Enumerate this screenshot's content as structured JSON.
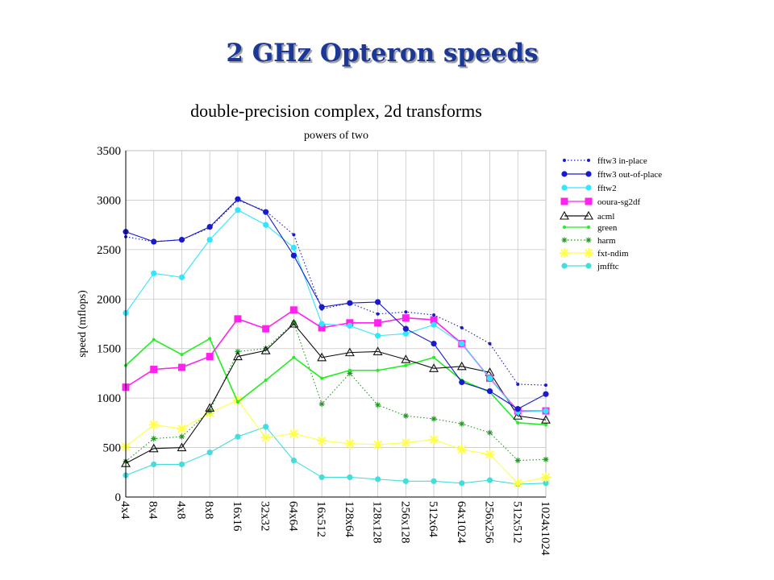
{
  "slide_title": "2 GHz Opteron speeds",
  "chart_data": {
    "type": "line",
    "title": "double-precision complex, 2d transforms",
    "subtitle": "powers of two",
    "xlabel": "",
    "ylabel": "speed (mflops)",
    "ylim": [
      0,
      3500
    ],
    "yticks": [
      0,
      500,
      1000,
      1500,
      2000,
      2500,
      3000,
      3500
    ],
    "grid": true,
    "legend_position": "right",
    "categories": [
      "4x4",
      "8x4",
      "4x8",
      "8x8",
      "16x16",
      "32x32",
      "64x64",
      "16x512",
      "128x64",
      "128x128",
      "256x128",
      "512x64",
      "64x1024",
      "256x256",
      "512x512",
      "1024x1024"
    ],
    "series": [
      {
        "name": "fftw3 in-place",
        "color": "#1a1acc",
        "style": "dotted",
        "marker": "smalldot",
        "values": [
          2630,
          2580,
          2600,
          2720,
          3000,
          2890,
          2650,
          1900,
          1960,
          1850,
          1870,
          1840,
          1710,
          1550,
          1140,
          1130
        ]
      },
      {
        "name": "fftw3 out-of-place",
        "color": "#1a1acc",
        "style": "solid",
        "marker": "dot",
        "values": [
          2680,
          2580,
          2600,
          2730,
          3010,
          2880,
          2440,
          1920,
          1960,
          1970,
          1700,
          1550,
          1160,
          1070,
          890,
          1040
        ]
      },
      {
        "name": "fftw2",
        "color": "#33e6ff",
        "style": "solid",
        "marker": "dot",
        "values": [
          1860,
          2260,
          2220,
          2600,
          2900,
          2750,
          2520,
          1750,
          1730,
          1630,
          1650,
          1740,
          1550,
          1200,
          860,
          870
        ]
      },
      {
        "name": "ooura-sg2df",
        "color": "#ff22ee",
        "style": "solid",
        "marker": "square",
        "values": [
          1110,
          1290,
          1310,
          1420,
          1800,
          1700,
          1890,
          1710,
          1760,
          1760,
          1810,
          1790,
          1550,
          1200,
          870,
          870
        ]
      },
      {
        "name": "acml",
        "color": "#111111",
        "style": "solid",
        "marker": "triangle",
        "values": [
          340,
          490,
          500,
          900,
          1420,
          1480,
          1750,
          1410,
          1460,
          1470,
          1390,
          1300,
          1320,
          1260,
          820,
          780
        ]
      },
      {
        "name": "green",
        "color": "#22ee22",
        "style": "solid",
        "marker": "smalldot",
        "values": [
          1330,
          1590,
          1440,
          1600,
          960,
          1180,
          1410,
          1200,
          1280,
          1280,
          1330,
          1410,
          1180,
          1060,
          750,
          730
        ]
      },
      {
        "name": "harm",
        "color": "#229922",
        "style": "dotted",
        "marker": "asterisk",
        "values": [
          360,
          590,
          610,
          870,
          1470,
          1500,
          1760,
          940,
          1250,
          930,
          820,
          790,
          740,
          650,
          370,
          380
        ]
      },
      {
        "name": "fxt-ndim",
        "color": "#ffff44",
        "style": "solid",
        "marker": "star",
        "values": [
          510,
          730,
          690,
          850,
          980,
          600,
          640,
          570,
          540,
          530,
          550,
          580,
          480,
          430,
          140,
          200
        ]
      },
      {
        "name": "jmfftc",
        "color": "#44dddd",
        "style": "solid",
        "marker": "dot",
        "values": [
          220,
          330,
          330,
          450,
          610,
          710,
          370,
          200,
          200,
          180,
          160,
          160,
          140,
          170,
          130,
          140
        ]
      }
    ]
  }
}
